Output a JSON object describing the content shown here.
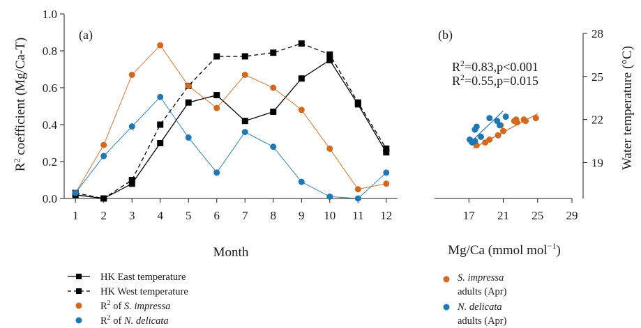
{
  "colors": {
    "east": "#000000",
    "west": "#000000",
    "impressa": "#D2691E",
    "delicata": "#1F77B4",
    "axis": "#1a1a1a"
  },
  "chart_data": [
    {
      "id": "a",
      "type": "line",
      "panel_label": "(a)",
      "xlabel": "Month",
      "ylabel_main": "R",
      "ylabel_sup": "2",
      "ylabel_rest": " coefficient (Mg/Ca-T)",
      "xlim": [
        0.6,
        12.4
      ],
      "ylim": [
        0.0,
        1.0
      ],
      "x_ticks": [
        1,
        2,
        3,
        4,
        5,
        6,
        7,
        8,
        9,
        10,
        11,
        12
      ],
      "y_ticks": [
        "0.0",
        "0.2",
        "0.4",
        "0.6",
        "0.8",
        "1.0"
      ],
      "grid": false,
      "legend_position": "bottom-left",
      "series": [
        {
          "key": "east",
          "name": "HK East temperature",
          "style": "solid",
          "marker": "square",
          "x": [
            1,
            2,
            3,
            4,
            5,
            6,
            7,
            8,
            9,
            10,
            11,
            12
          ],
          "y": [
            0.02,
            0.0,
            0.08,
            0.3,
            0.52,
            0.56,
            0.42,
            0.47,
            0.65,
            0.75,
            0.51,
            0.25
          ]
        },
        {
          "key": "west",
          "name": "HK West temperature",
          "style": "dashed",
          "marker": "square",
          "x": [
            1,
            2,
            3,
            4,
            5,
            6,
            7,
            8,
            9,
            10,
            11,
            12
          ],
          "y": [
            0.03,
            0.0,
            0.1,
            0.4,
            0.61,
            0.77,
            0.77,
            0.79,
            0.84,
            0.78,
            0.52,
            0.27
          ]
        },
        {
          "key": "impressa",
          "name_prefix": "R",
          "name_sup": "2",
          "name_mid": " of ",
          "name_species": "S. impressa",
          "style": "solid",
          "marker": "circle",
          "x": [
            1,
            2,
            3,
            4,
            5,
            6,
            7,
            8,
            9,
            10,
            11,
            12
          ],
          "y": [
            0.03,
            0.29,
            0.67,
            0.83,
            0.61,
            0.49,
            0.67,
            0.6,
            0.48,
            0.27,
            0.05,
            0.08
          ]
        },
        {
          "key": "delicata",
          "name_prefix": "R",
          "name_sup": "2",
          "name_mid": " of ",
          "name_species": "N. delicata",
          "style": "solid",
          "marker": "circle",
          "x": [
            1,
            2,
            3,
            4,
            5,
            6,
            7,
            8,
            9,
            10,
            11,
            12
          ],
          "y": [
            0.03,
            0.23,
            0.39,
            0.55,
            0.33,
            0.14,
            0.36,
            0.28,
            0.09,
            0.01,
            0.0,
            0.14
          ]
        }
      ]
    },
    {
      "id": "b",
      "type": "scatter",
      "panel_label": "(b)",
      "xlabel_main": "Mg/Ca (mmol mol",
      "xlabel_sup": "−1",
      "xlabel_end": ")",
      "ylabel": "Water temperature (°C)",
      "xlim": [
        13,
        29
      ],
      "ylim": [
        16.5,
        28
      ],
      "x_ticks": [
        17,
        21,
        25,
        29
      ],
      "y_ticks": [
        19,
        22,
        25,
        28
      ],
      "grid": false,
      "legend_position": "bottom",
      "annotations": [
        {
          "key": "impressa",
          "r": "R",
          "sup": "2",
          "rest": "=0.83,p<0.001"
        },
        {
          "key": "delicata",
          "r": "R",
          "sup": "2",
          "rest": "=0.55,p=0.015"
        }
      ],
      "series": [
        {
          "key": "impressa",
          "species": "S. impressa",
          "detail": "adults (Apr)",
          "points": [
            [
              17.9,
              20.2
            ],
            [
              18.9,
              20.4
            ],
            [
              19.4,
              20.6
            ],
            [
              20.4,
              20.9
            ],
            [
              21.0,
              21.2
            ],
            [
              20.7,
              21.6
            ],
            [
              22.3,
              21.9
            ],
            [
              22.6,
              21.8
            ],
            [
              22.5,
              22.0
            ],
            [
              23.4,
              22.0
            ],
            [
              23.6,
              21.9
            ],
            [
              24.8,
              22.1
            ]
          ],
          "fit": [
            [
              17.5,
              20.0
            ],
            [
              25.0,
              22.4
            ]
          ]
        },
        {
          "key": "delicata",
          "species": "N. delicata",
          "detail": "adults (Apr)",
          "points": [
            [
              17.1,
              20.6
            ],
            [
              17.4,
              20.4
            ],
            [
              17.7,
              20.5
            ],
            [
              17.7,
              21.3
            ],
            [
              17.9,
              21.5
            ],
            [
              18.4,
              20.8
            ],
            [
              19.4,
              22.1
            ],
            [
              20.3,
              21.9
            ],
            [
              20.6,
              21.6
            ],
            [
              21.3,
              22.2
            ]
          ],
          "fit": [
            [
              17.0,
              20.3
            ],
            [
              21.0,
              22.6
            ]
          ]
        }
      ]
    }
  ]
}
